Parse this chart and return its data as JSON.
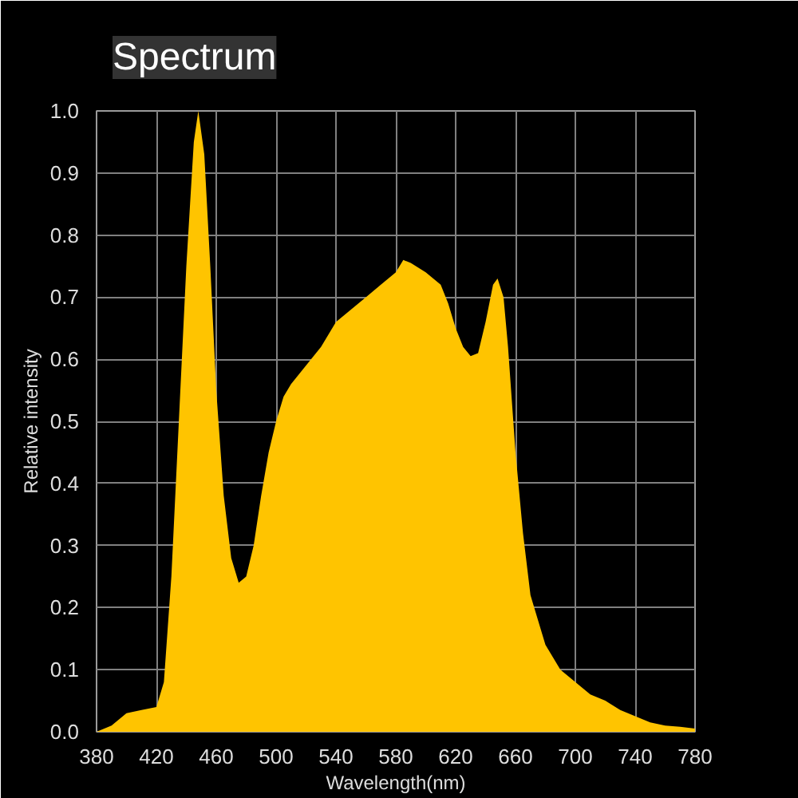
{
  "chart_data": {
    "type": "area",
    "title": "Spectrum",
    "xlabel": "Wavelength(nm)",
    "ylabel": "Relative intensity",
    "x": [
      380,
      390,
      400,
      410,
      420,
      425,
      430,
      435,
      440,
      445,
      448,
      452,
      456,
      460,
      465,
      470,
      475,
      480,
      485,
      490,
      495,
      500,
      505,
      510,
      520,
      530,
      540,
      550,
      560,
      570,
      580,
      585,
      590,
      600,
      610,
      615,
      620,
      625,
      630,
      635,
      640,
      645,
      648,
      652,
      655,
      660,
      665,
      670,
      680,
      690,
      700,
      710,
      720,
      730,
      740,
      750,
      760,
      770,
      780
    ],
    "values": [
      0.0,
      0.01,
      0.03,
      0.035,
      0.04,
      0.08,
      0.25,
      0.5,
      0.75,
      0.95,
      1.0,
      0.93,
      0.75,
      0.55,
      0.38,
      0.28,
      0.24,
      0.25,
      0.3,
      0.38,
      0.45,
      0.5,
      0.54,
      0.56,
      0.59,
      0.62,
      0.66,
      0.68,
      0.7,
      0.72,
      0.74,
      0.76,
      0.755,
      0.74,
      0.72,
      0.69,
      0.65,
      0.62,
      0.605,
      0.61,
      0.66,
      0.72,
      0.73,
      0.7,
      0.62,
      0.45,
      0.32,
      0.22,
      0.14,
      0.1,
      0.08,
      0.06,
      0.05,
      0.035,
      0.025,
      0.015,
      0.01,
      0.008,
      0.005
    ],
    "color": "#ffc400",
    "xlim": [
      380,
      780
    ],
    "ylim": [
      0,
      1
    ],
    "xticks": [
      380,
      420,
      460,
      500,
      540,
      580,
      620,
      660,
      700,
      740,
      780
    ],
    "yticks": [
      {
        "value": 0,
        "label": "0.0"
      },
      0.1,
      0.2,
      0.3,
      0.4,
      0.5,
      0.6,
      0.7,
      0.8,
      0.9,
      {
        "value": 1,
        "label": "1.0"
      }
    ],
    "grid": true
  }
}
